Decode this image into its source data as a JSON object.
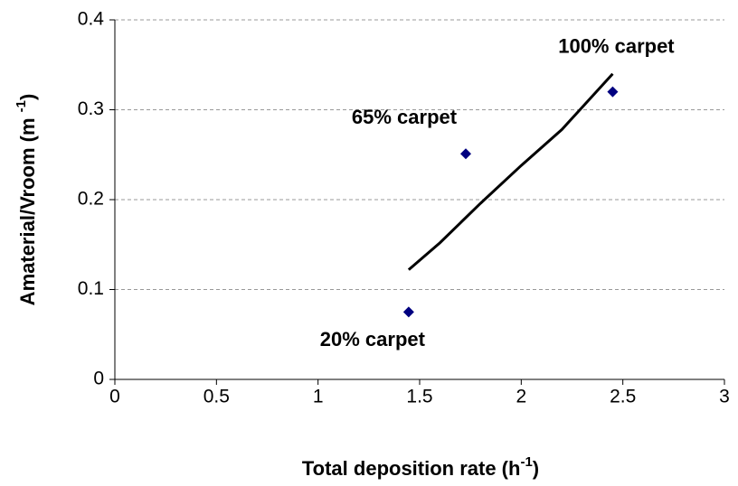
{
  "chart_data": {
    "type": "scatter",
    "x_label": [
      "Total deposition rate (h",
      "-1",
      ")"
    ],
    "y_label": [
      "Amaterial/Vroom (m ",
      "-1",
      ")"
    ],
    "xlim": [
      0,
      3
    ],
    "xticks": [
      0,
      0.5,
      1,
      1.5,
      2,
      2.5,
      3
    ],
    "ylim": [
      0,
      0.4
    ],
    "yticks": [
      0,
      0.1,
      0.2,
      0.3,
      0.4
    ],
    "grid": true,
    "series": [
      {
        "type": "scatter",
        "color": "#000080",
        "x": [
          1.446,
          1.727,
          2.45
        ],
        "values": [
          0.075,
          0.251,
          0.32
        ],
        "point_labels": [
          "20% carpet",
          "65% carpet",
          "100% carpet"
        ]
      },
      {
        "type": "line",
        "color": "#000000",
        "x": [
          1.446,
          1.6,
          1.8,
          2.0,
          2.2,
          2.45
        ],
        "values": [
          0.122,
          0.152,
          0.196,
          0.238,
          0.278,
          0.34
        ]
      }
    ]
  }
}
